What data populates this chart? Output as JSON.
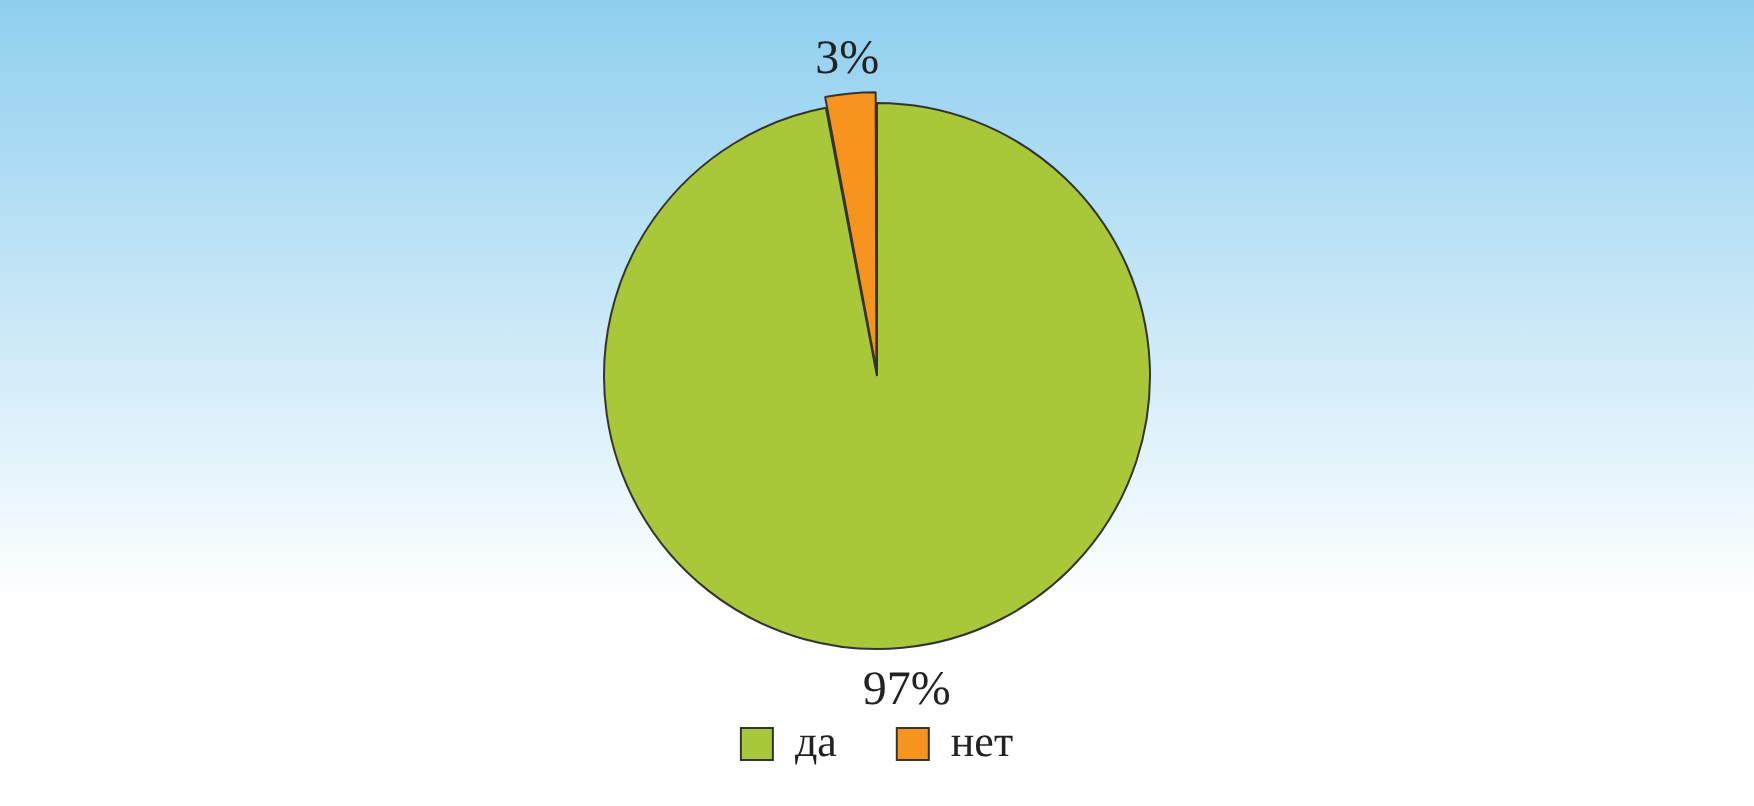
{
  "chart_data": {
    "type": "pie",
    "categories": [
      "да",
      "нет"
    ],
    "values": [
      97,
      3
    ],
    "colors": [
      "#a8c83a",
      "#f7941d"
    ],
    "value_labels": [
      "97%",
      "3%"
    ],
    "legend": "bottom"
  }
}
